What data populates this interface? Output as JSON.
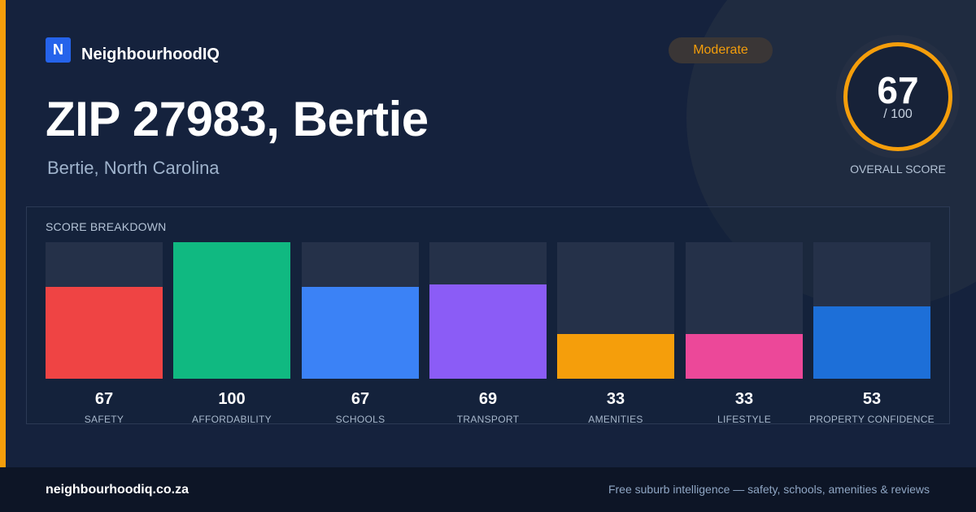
{
  "brand": {
    "logo_letter": "N",
    "name": "NeighbourhoodIQ"
  },
  "badge": {
    "label": "Moderate",
    "color": "#f59e0b"
  },
  "header": {
    "title": "ZIP 27983, Bertie",
    "subtitle": "Bertie, North Carolina"
  },
  "overall": {
    "score": "67",
    "max": "/ 100",
    "caption": "OVERALL SCORE",
    "ring_color": "#f59e0b"
  },
  "breakdown": {
    "title": "SCORE BREAKDOWN",
    "items": [
      {
        "label": "SAFETY",
        "value": "67",
        "color": "#ef4444"
      },
      {
        "label": "AFFORDABILITY",
        "value": "100",
        "color": "#10b981"
      },
      {
        "label": "SCHOOLS",
        "value": "67",
        "color": "#3b82f6"
      },
      {
        "label": "TRANSPORT",
        "value": "69",
        "color": "#8b5cf6"
      },
      {
        "label": "AMENITIES",
        "value": "33",
        "color": "#f59e0b"
      },
      {
        "label": "LIFESTYLE",
        "value": "33",
        "color": "#ec4899"
      },
      {
        "label": "PROPERTY CONFIDENCE",
        "value": "53",
        "color": "#1d6fd8"
      }
    ]
  },
  "footer": {
    "domain": "neighbourhoodiq.co.za",
    "tagline": "Free suburb intelligence — safety, schools, amenities & reviews"
  },
  "colors": {
    "accent": "#f59e0b",
    "background": "#15223d",
    "footer": "#0d1526"
  }
}
